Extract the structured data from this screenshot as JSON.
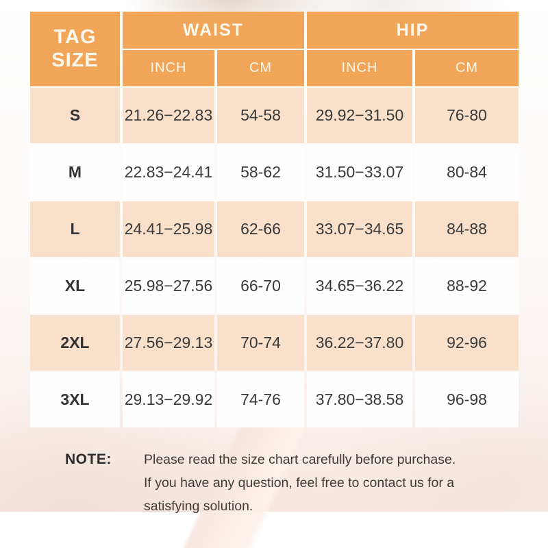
{
  "table": {
    "header": {
      "tag_size_line1": "TAG",
      "tag_size_line2": "SIZE",
      "waist": "WAIST",
      "hip": "HIP",
      "waist_inch": "INCH",
      "waist_cm": "CM",
      "hip_inch": "INCH",
      "hip_cm": "CM"
    },
    "rows": [
      {
        "size": "S",
        "waist_inch": "21.26−22.83",
        "waist_cm": "54-58",
        "hip_inch": "29.92−31.50",
        "hip_cm": "76-80"
      },
      {
        "size": "M",
        "waist_inch": "22.83−24.41",
        "waist_cm": "58-62",
        "hip_inch": "31.50−33.07",
        "hip_cm": "80-84"
      },
      {
        "size": "L",
        "waist_inch": "24.41−25.98",
        "waist_cm": "62-66",
        "hip_inch": "33.07−34.65",
        "hip_cm": "84-88"
      },
      {
        "size": "XL",
        "waist_inch": "25.98−27.56",
        "waist_cm": "66-70",
        "hip_inch": "34.65−36.22",
        "hip_cm": "88-92"
      },
      {
        "size": "2XL",
        "waist_inch": "27.56−29.13",
        "waist_cm": "70-74",
        "hip_inch": "36.22−37.80",
        "hip_cm": "92-96"
      },
      {
        "size": "3XL",
        "waist_inch": "29.13−29.92",
        "waist_cm": "74-76",
        "hip_inch": "37.80−38.58",
        "hip_cm": "96-98"
      }
    ]
  },
  "note": {
    "label": "NOTE:",
    "line1": "Please read the size chart carefully before purchase.",
    "line2": "If you have any question, feel free to contact us for a",
    "line3": "satisfying solution."
  },
  "colors": {
    "header_orange": "#F0A558",
    "row_peach": "#F9E0CB",
    "text_dark": "#333333"
  }
}
